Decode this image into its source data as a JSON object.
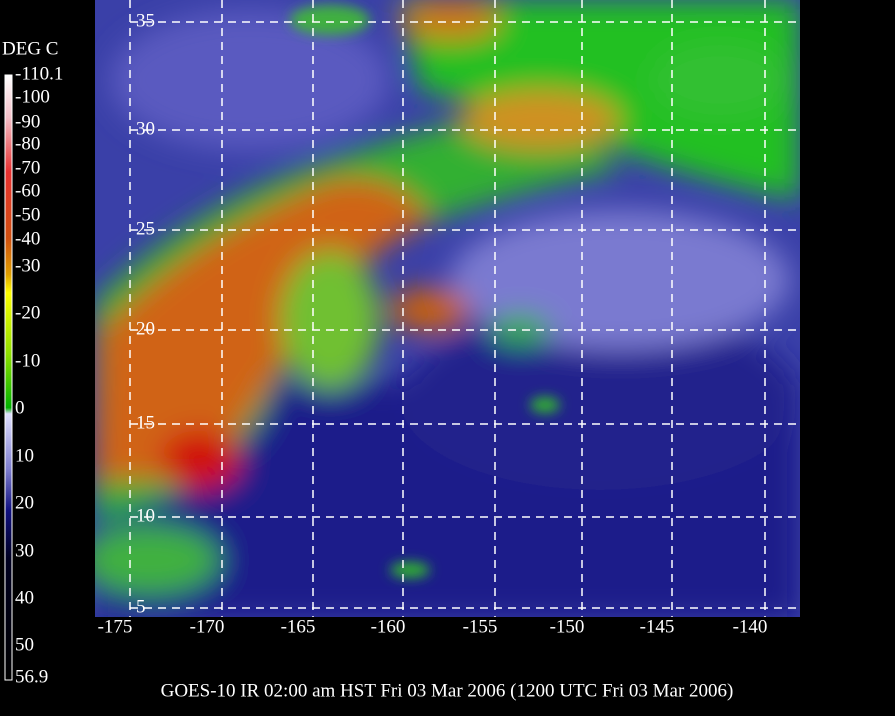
{
  "colorbar": {
    "title": "DEG C",
    "labels": [
      "-110.1",
      "-100",
      "-90",
      "-80",
      "-70",
      "-60",
      "-50",
      "-40",
      "-30",
      "-20",
      "-10",
      "0",
      "10",
      "20",
      "30",
      "40",
      "50",
      "56.9"
    ]
  },
  "map": {
    "lat_labels": [
      "35",
      "30",
      "25",
      "20",
      "15",
      "10",
      "5"
    ],
    "lon_labels": [
      "-175",
      "-170",
      "-165",
      "-160",
      "-155",
      "-150",
      "-145",
      "-140"
    ]
  },
  "caption": "GOES-10 IR 02:00 am HST Fri 03 Mar 2006 (1200 UTC Fri 03 Mar 2006)"
}
